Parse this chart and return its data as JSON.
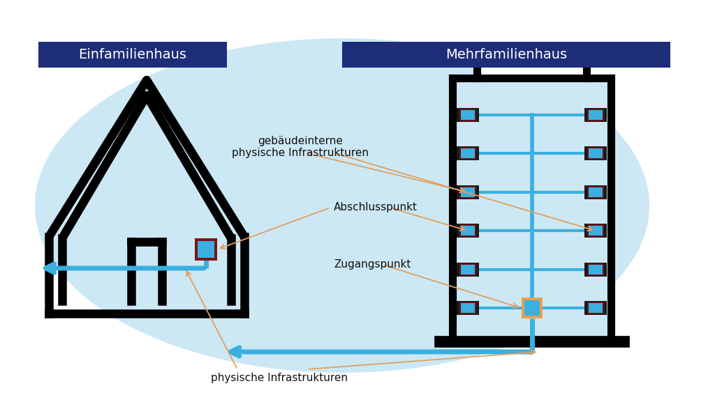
{
  "bg_color": "#ffffff",
  "ellipse_color": "#cce8f4",
  "label_bg_color": "#1e2d78",
  "label_text_color": "#ffffff",
  "label1": "Einfamilienhaus",
  "label2": "Mehrfamilienhaus",
  "blue_line_color": "#3aafe0",
  "orange_line_color": "#e8a050",
  "connector_blue": "#3aafe0",
  "connector_dark_border": "#6b1010",
  "connector_black": "#1a1a1a",
  "annotation_color": "#111111",
  "arrow_color": "#e0a060",
  "text_gebaeude": "gebäudeinterne\nphysische Infrastrukturen",
  "text_abschluss": "Abschlusspunkt",
  "text_zugang": "Zugangspunkt",
  "text_physisch": "physische Infrastrukturen",
  "num_floors": 6,
  "lw_house": 9,
  "lw_building": 8
}
